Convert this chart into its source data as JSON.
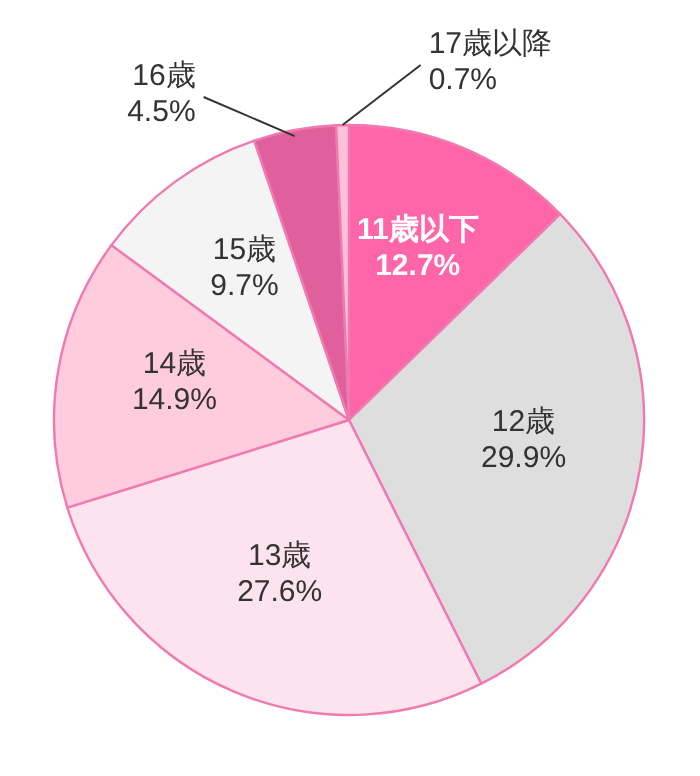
{
  "chart_data": {
    "type": "pie",
    "categories": [
      "11歳以下",
      "12歳",
      "13歳",
      "14歳",
      "15歳",
      "16歳",
      "17歳以降"
    ],
    "values": [
      12.7,
      29.9,
      27.6,
      14.9,
      9.7,
      4.5,
      0.7
    ],
    "value_labels": [
      "12.7%",
      "29.9%",
      "27.6%",
      "14.9%",
      "9.7%",
      "4.5%",
      "0.7%"
    ],
    "colors": [
      "#ff66aa",
      "#dedede",
      "#fde3ee",
      "#ffccdd",
      "#f4f4f4",
      "#e0609e",
      "#ffc0d8"
    ]
  }
}
